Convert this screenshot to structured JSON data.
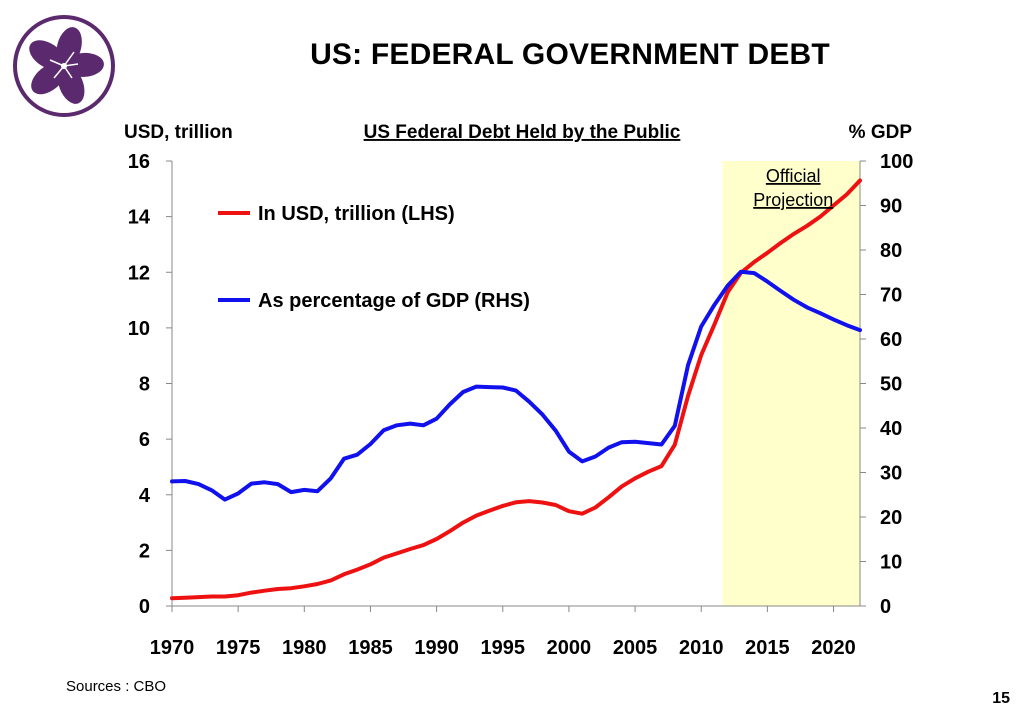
{
  "slide": {
    "title": "US: FEDERAL GOVERNMENT DEBT",
    "sources": "Sources : CBO",
    "page_number": "15"
  },
  "logo": {
    "name": "bauhinia-flower-logo",
    "color": "#5b2a6e"
  },
  "chart_data": {
    "type": "line",
    "title": "US Federal Debt Held by the Public",
    "ylabel_left": "USD, trillion",
    "ylabel_right": "% GDP",
    "x_ticks": [
      1970,
      1975,
      1980,
      1985,
      1990,
      1995,
      2000,
      2005,
      2010,
      2015,
      2020
    ],
    "xlim": [
      1970,
      2022
    ],
    "ylim_left": [
      0,
      16
    ],
    "yticks_left": [
      0,
      2,
      4,
      6,
      8,
      10,
      12,
      14,
      16
    ],
    "ylim_right": [
      0,
      100
    ],
    "yticks_right": [
      0,
      10,
      20,
      30,
      40,
      50,
      60,
      70,
      80,
      90,
      100
    ],
    "grid": false,
    "legend": "upper-left",
    "projection": {
      "label": "Official Projection",
      "from": 2011,
      "to": 2022,
      "color": "#ffffcc"
    },
    "x": [
      1970,
      1971,
      1972,
      1973,
      1974,
      1975,
      1976,
      1977,
      1978,
      1979,
      1980,
      1981,
      1982,
      1983,
      1984,
      1985,
      1986,
      1987,
      1988,
      1989,
      1990,
      1991,
      1992,
      1993,
      1994,
      1995,
      1996,
      1997,
      1998,
      1999,
      2000,
      2001,
      2002,
      2003,
      2004,
      2005,
      2006,
      2007,
      2008,
      2009,
      2010,
      2011,
      2012,
      2013,
      2014,
      2015,
      2016,
      2017,
      2018,
      2019,
      2020,
      2021,
      2022
    ],
    "series": [
      {
        "name": "In USD, trillion (LHS)",
        "axis": "left",
        "color": "#ee1111",
        "values": [
          0.28,
          0.3,
          0.32,
          0.34,
          0.34,
          0.39,
          0.48,
          0.55,
          0.61,
          0.64,
          0.71,
          0.79,
          0.92,
          1.14,
          1.31,
          1.5,
          1.74,
          1.89,
          2.05,
          2.19,
          2.41,
          2.69,
          3.0,
          3.25,
          3.43,
          3.6,
          3.73,
          3.77,
          3.72,
          3.63,
          3.41,
          3.32,
          3.54,
          3.91,
          4.3,
          4.59,
          4.83,
          5.03,
          5.8,
          7.55,
          9.02,
          10.13,
          11.28,
          11.98,
          12.37,
          12.7,
          13.05,
          13.38,
          13.67,
          14.0,
          14.4,
          14.8,
          15.3
        ]
      },
      {
        "name": "As percentage of GDP (RHS)",
        "axis": "right",
        "color": "#1111ee",
        "values": [
          28.0,
          28.1,
          27.4,
          26.0,
          23.9,
          25.3,
          27.5,
          27.8,
          27.4,
          25.6,
          26.1,
          25.8,
          28.7,
          33.1,
          34.0,
          36.4,
          39.5,
          40.6,
          41.0,
          40.6,
          42.1,
          45.3,
          48.1,
          49.3,
          49.2,
          49.1,
          48.4,
          45.9,
          43.0,
          39.4,
          34.7,
          32.5,
          33.6,
          35.6,
          36.8,
          36.9,
          36.6,
          36.3,
          40.5,
          54.1,
          62.8,
          67.7,
          72.0,
          75.1,
          74.8,
          72.9,
          70.8,
          68.8,
          67.1,
          65.8,
          64.4,
          63.1,
          62.0
        ]
      }
    ]
  }
}
